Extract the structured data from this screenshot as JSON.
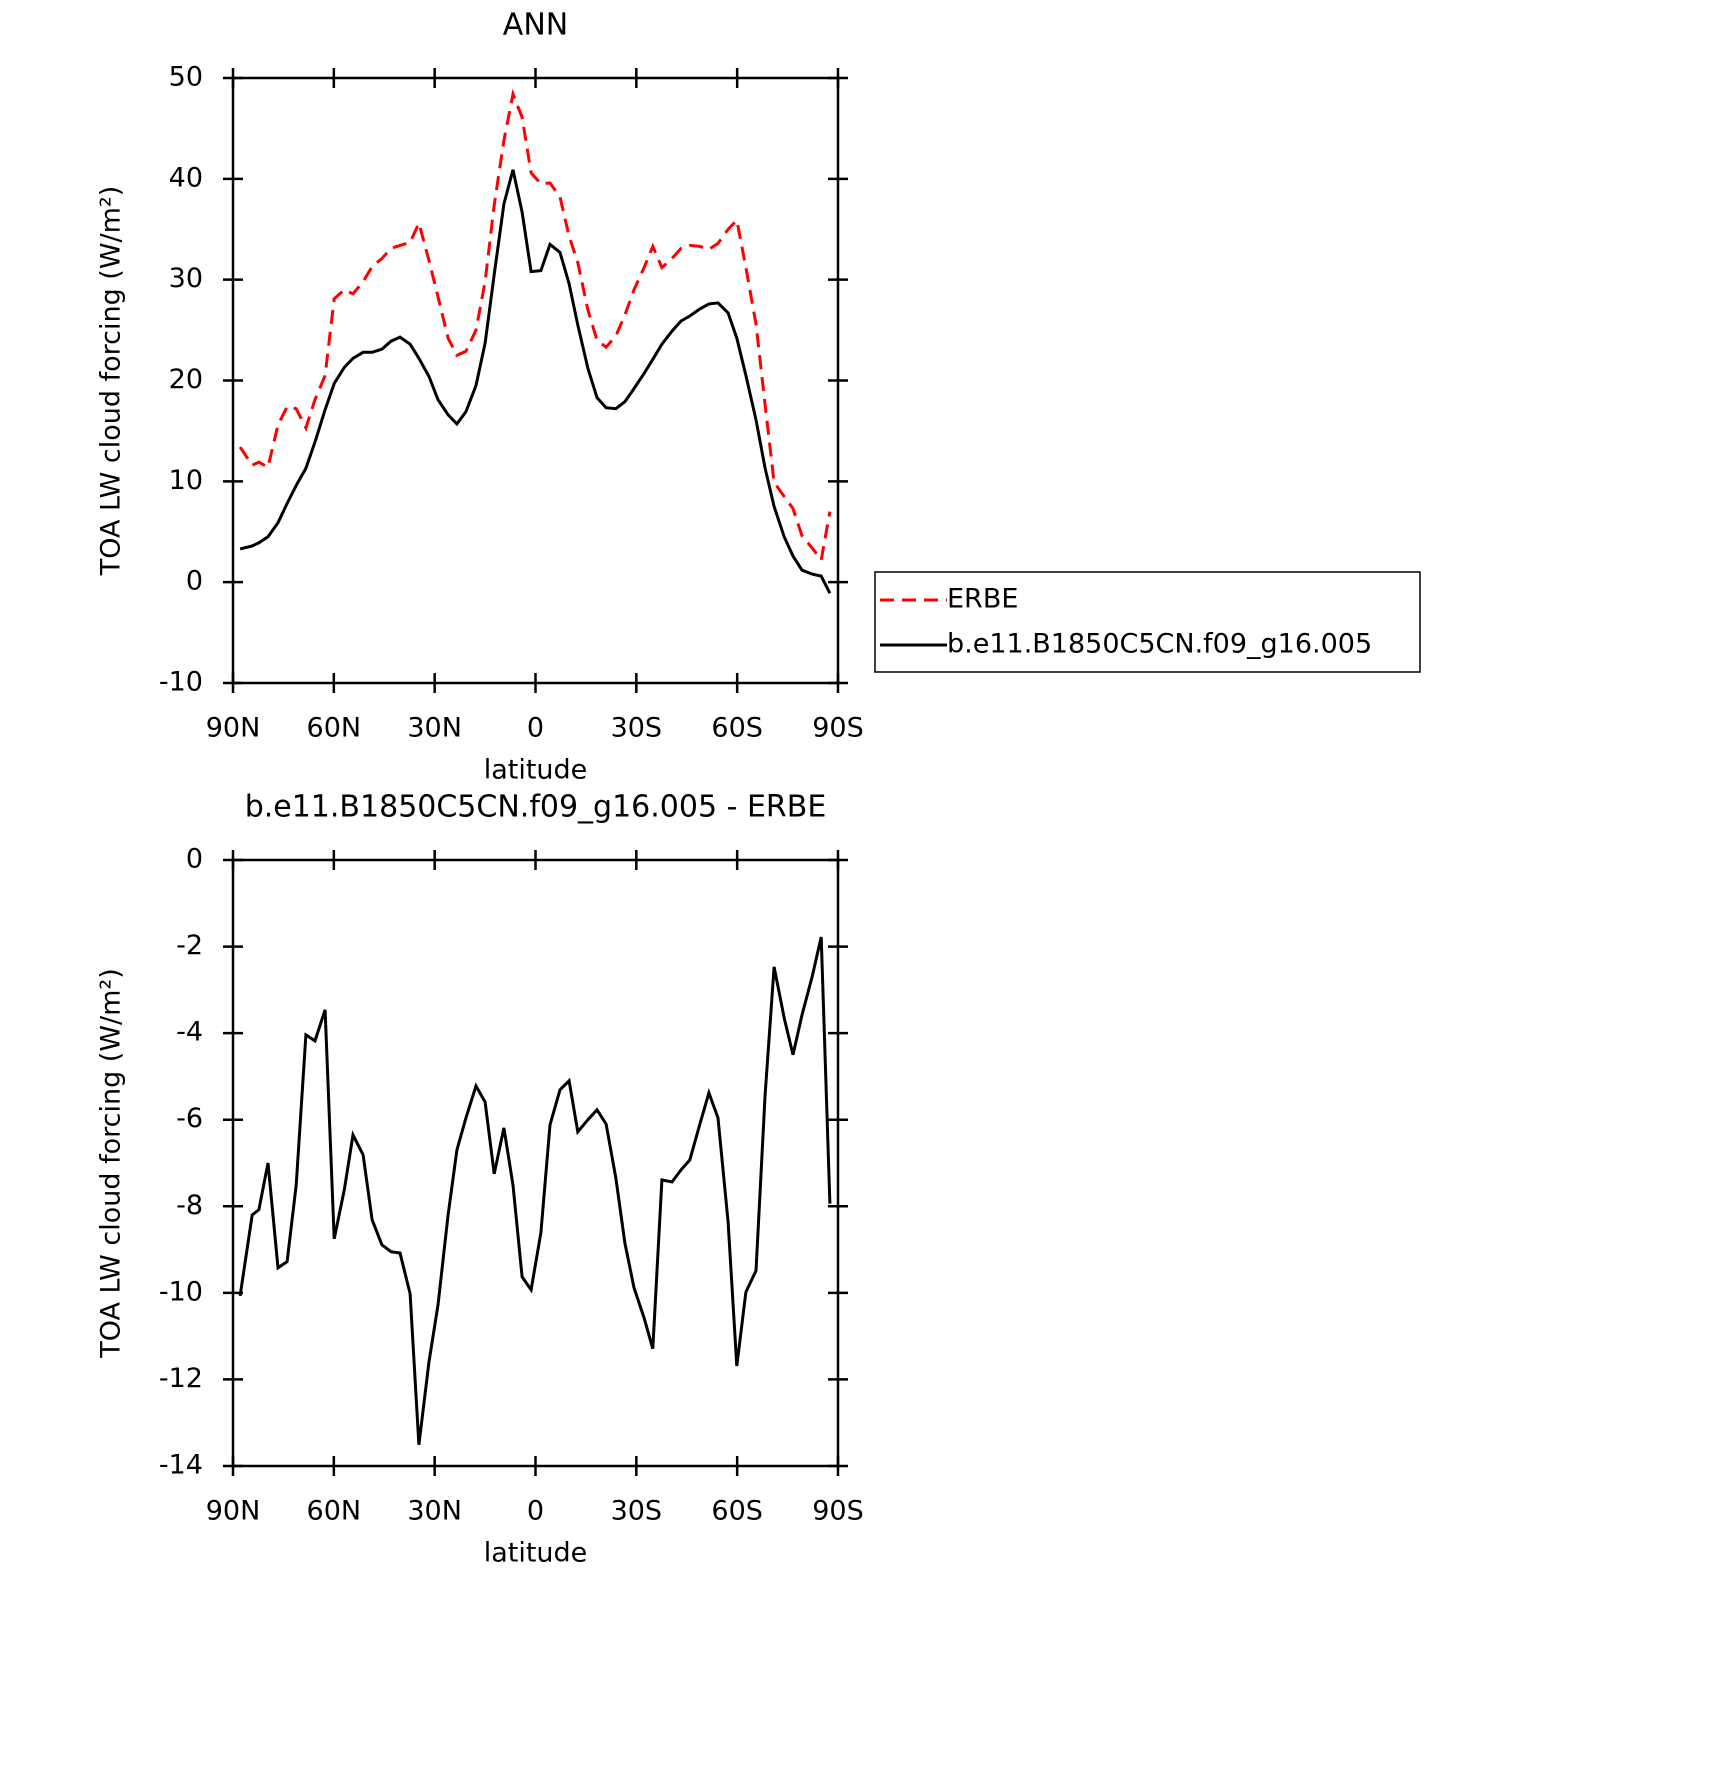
{
  "chart_data": [
    {
      "type": "line",
      "title": "ANN",
      "xlabel": "latitude",
      "ylabel": "TOA LW cloud forcing (W/m²)",
      "x": [
        87.9,
        84.3,
        82.3,
        79.6,
        76.6,
        73.9,
        71.2,
        68.3,
        65.6,
        62.6,
        59.9,
        56.9,
        54.3,
        51.3,
        48.6,
        45.7,
        43.0,
        40.3,
        37.3,
        34.7,
        31.7,
        29.0,
        26.0,
        23.4,
        20.7,
        17.7,
        15.0,
        12.3,
        9.4,
        6.7,
        4.0,
        1.3,
        -1.6,
        -4.3,
        -7.3,
        -10.0,
        -12.6,
        -15.6,
        -18.3,
        -21.0,
        -23.9,
        -26.6,
        -29.3,
        -32.3,
        -34.9,
        -37.6,
        -40.6,
        -43.3,
        -45.9,
        -48.9,
        -51.6,
        -54.3,
        -57.3,
        -59.9,
        -62.6,
        -65.6,
        -68.3,
        -71.0,
        -74.0,
        -76.6,
        -79.3,
        -82.3,
        -85.0,
        -87.6
      ],
      "series": [
        {
          "name": "ERBE",
          "color": "#ff0000",
          "dashed": true,
          "values": [
            13.4,
            11.6,
            11.9,
            11.4,
            15.6,
            17.4,
            17.2,
            15.3,
            18.1,
            20.5,
            28.1,
            29.0,
            28.6,
            29.8,
            31.3,
            32.1,
            33.1,
            33.4,
            33.7,
            35.6,
            31.9,
            28.3,
            24.2,
            22.5,
            22.9,
            25.0,
            29.8,
            37.4,
            43.8,
            48.4,
            46.1,
            40.6,
            39.5,
            39.6,
            38.2,
            34.3,
            31.7,
            27.0,
            24.0,
            23.3,
            24.4,
            26.5,
            29.0,
            31.2,
            33.3,
            31.2,
            32.1,
            33.1,
            33.4,
            33.3,
            33.0,
            33.6,
            35.0,
            35.9,
            31.2,
            25.6,
            17.6,
            9.9,
            8.5,
            7.3,
            4.6,
            3.4,
            2.2,
            7.0
          ]
        },
        {
          "name": "b.e11.B1850C5CN.f09_g16.005",
          "color": "#000000",
          "dashed": false,
          "values": [
            3.3,
            3.6,
            3.9,
            4.5,
            5.9,
            7.8,
            9.6,
            11.3,
            13.9,
            17.1,
            19.7,
            21.3,
            22.2,
            22.8,
            22.8,
            23.1,
            23.9,
            24.3,
            23.6,
            22.2,
            20.4,
            18.1,
            16.6,
            15.7,
            16.9,
            19.5,
            23.7,
            30.5,
            37.5,
            40.9,
            36.7,
            30.8,
            30.9,
            33.5,
            32.7,
            29.6,
            25.5,
            21.2,
            18.3,
            17.3,
            17.2,
            17.9,
            19.2,
            20.7,
            22.1,
            23.6,
            24.9,
            25.9,
            26.4,
            27.1,
            27.6,
            27.7,
            26.7,
            24.2,
            20.5,
            16.1,
            11.3,
            7.5,
            4.5,
            2.6,
            1.2,
            0.8,
            0.6,
            -1.1
          ]
        }
      ],
      "xlim": [
        90,
        -90
      ],
      "xticks": [
        {
          "value": 90,
          "label": "90N"
        },
        {
          "value": 60,
          "label": "60N"
        },
        {
          "value": 30,
          "label": "30N"
        },
        0,
        {
          "value": -30,
          "label": "30S"
        },
        {
          "value": -60,
          "label": "60S"
        },
        {
          "value": -90,
          "label": "90S"
        }
      ],
      "ylim": [
        -10,
        50
      ],
      "yticks": [
        -10,
        0,
        10,
        20,
        30,
        40,
        50
      ],
      "legend": "right"
    },
    {
      "type": "line",
      "title": "b.e11.B1850C5CN.f09_g16.005 - ERBE",
      "xlabel": "latitude",
      "ylabel": "TOA LW cloud forcing (W/m²)",
      "x": [
        87.9,
        84.3,
        82.3,
        79.6,
        76.6,
        73.9,
        71.2,
        68.3,
        65.6,
        62.6,
        59.9,
        56.9,
        54.3,
        51.3,
        48.6,
        45.7,
        43.0,
        40.3,
        37.3,
        34.7,
        31.7,
        29.0,
        26.0,
        23.4,
        20.7,
        17.7,
        15.0,
        12.3,
        9.4,
        6.7,
        4.0,
        1.3,
        -1.6,
        -4.3,
        -7.3,
        -10.0,
        -12.6,
        -15.6,
        -18.3,
        -21.0,
        -23.9,
        -26.6,
        -29.3,
        -32.3,
        -34.9,
        -37.6,
        -40.6,
        -43.3,
        -45.9,
        -48.9,
        -51.6,
        -54.3,
        -57.3,
        -59.9,
        -62.6,
        -65.6,
        -68.3,
        -71.0,
        -74.0,
        -76.6,
        -79.3,
        -82.3,
        -85.0,
        -87.6
      ],
      "values": [
        -10.07,
        -8.2,
        -8.08,
        -7.0,
        -9.42,
        -9.28,
        -7.51,
        -4.04,
        -4.18,
        -3.46,
        -8.75,
        -7.62,
        -6.35,
        -6.81,
        -8.31,
        -8.89,
        -9.05,
        -9.08,
        -10.02,
        -13.51,
        -11.59,
        -10.28,
        -8.2,
        -6.7,
        -5.96,
        -5.22,
        -5.59,
        -7.25,
        -6.19,
        -7.51,
        -9.63,
        -9.93,
        -8.61,
        -6.12,
        -5.31,
        -5.1,
        -6.28,
        -6.0,
        -5.77,
        -6.1,
        -7.34,
        -8.85,
        -9.88,
        -10.58,
        -11.29,
        -7.39,
        -7.44,
        -7.16,
        -6.93,
        -6.1,
        -5.38,
        -5.96,
        -8.36,
        -11.69,
        -9.98,
        -9.49,
        -5.43,
        -2.47,
        -3.65,
        -4.5,
        -3.58,
        -2.7,
        -1.78,
        -7.94
      ],
      "color": "#000000",
      "xlim": [
        90,
        -90
      ],
      "xticks": [
        {
          "value": 90,
          "label": "90N"
        },
        {
          "value": 60,
          "label": "60N"
        },
        {
          "value": 30,
          "label": "30N"
        },
        0,
        {
          "value": -30,
          "label": "30S"
        },
        {
          "value": -60,
          "label": "60S"
        },
        {
          "value": -90,
          "label": "90S"
        }
      ],
      "ylim": [
        -14,
        0
      ],
      "yticks": [
        -14,
        -12,
        -10,
        -8,
        -6,
        -4,
        -2,
        0
      ]
    }
  ]
}
